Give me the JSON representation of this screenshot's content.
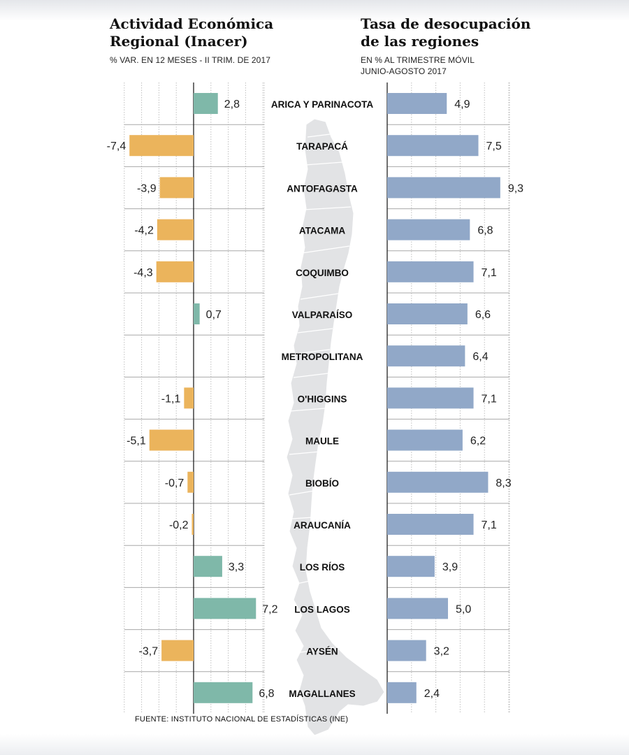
{
  "left_panel": {
    "title": "Actividad Económica\nRegional (Inacer)",
    "subtitle": "% VAR. EN 12 MESES - II TRIM. DE 2017"
  },
  "right_panel": {
    "title": "Tasa de desocupación\nde las regiones",
    "subtitle": "EN % AL TRIMESTRE MÓVIL\nJUNIO-AGOSTO 2017"
  },
  "source": "FUENTE: INSTITUTO NACIONAL DE ESTADÍSTICAS (INE)",
  "colors": {
    "positive": "#7fb8a9",
    "negative": "#ebb45c",
    "unemployment": "#91a8c8",
    "map": "#e2e3e5"
  },
  "chart_data": [
    {
      "type": "bar",
      "orientation": "horizontal",
      "categories": [
        "ARICA Y PARINACOTA",
        "TARAPACÁ",
        "ANTOFAGASTA",
        "ATACAMA",
        "COQUIMBO",
        "VALPARAÍSO",
        "METROPOLITANA",
        "O'HIGGINS",
        "MAULE",
        "BIOBÍO",
        "ARAUCANÍA",
        "LOS RÍOS",
        "LOS LAGOS",
        "AYSÉN",
        "MAGALLANES"
      ],
      "values": [
        2.8,
        -7.4,
        -3.9,
        -4.2,
        -4.3,
        0.7,
        null,
        -1.1,
        -5.1,
        -0.7,
        -0.2,
        3.3,
        7.2,
        -3.7,
        6.8
      ],
      "labels": [
        "2,8",
        "-7,4",
        "-3,9",
        "-4,2",
        "-4,3",
        "0,7",
        "",
        "-1,1",
        "-5,1",
        "-0,7",
        "-0,2",
        "3,3",
        "7,2",
        "-3,7",
        "6,8"
      ],
      "xlim": [
        -8,
        8
      ],
      "grid": true
    },
    {
      "type": "bar",
      "orientation": "horizontal",
      "categories": [
        "ARICA Y PARINACOTA",
        "TARAPACÁ",
        "ANTOFAGASTA",
        "ATACAMA",
        "COQUIMBO",
        "VALPARAÍSO",
        "METROPOLITANA",
        "O'HIGGINS",
        "MAULE",
        "BIOBÍO",
        "ARAUCANÍA",
        "LOS RÍOS",
        "LOS LAGOS",
        "AYSÉN",
        "MAGALLANES"
      ],
      "values": [
        4.9,
        7.5,
        9.3,
        6.8,
        7.1,
        6.6,
        6.4,
        7.1,
        6.2,
        8.3,
        7.1,
        3.9,
        5.0,
        3.2,
        2.4
      ],
      "labels": [
        "4,9",
        "7,5",
        "9,3",
        "6,8",
        "7,1",
        "6,6",
        "6,4",
        "7,1",
        "6,2",
        "8,3",
        "7,1",
        "3,9",
        "5,0",
        "3,2",
        "2,4"
      ],
      "xlim": [
        0,
        10
      ],
      "grid": true
    }
  ]
}
